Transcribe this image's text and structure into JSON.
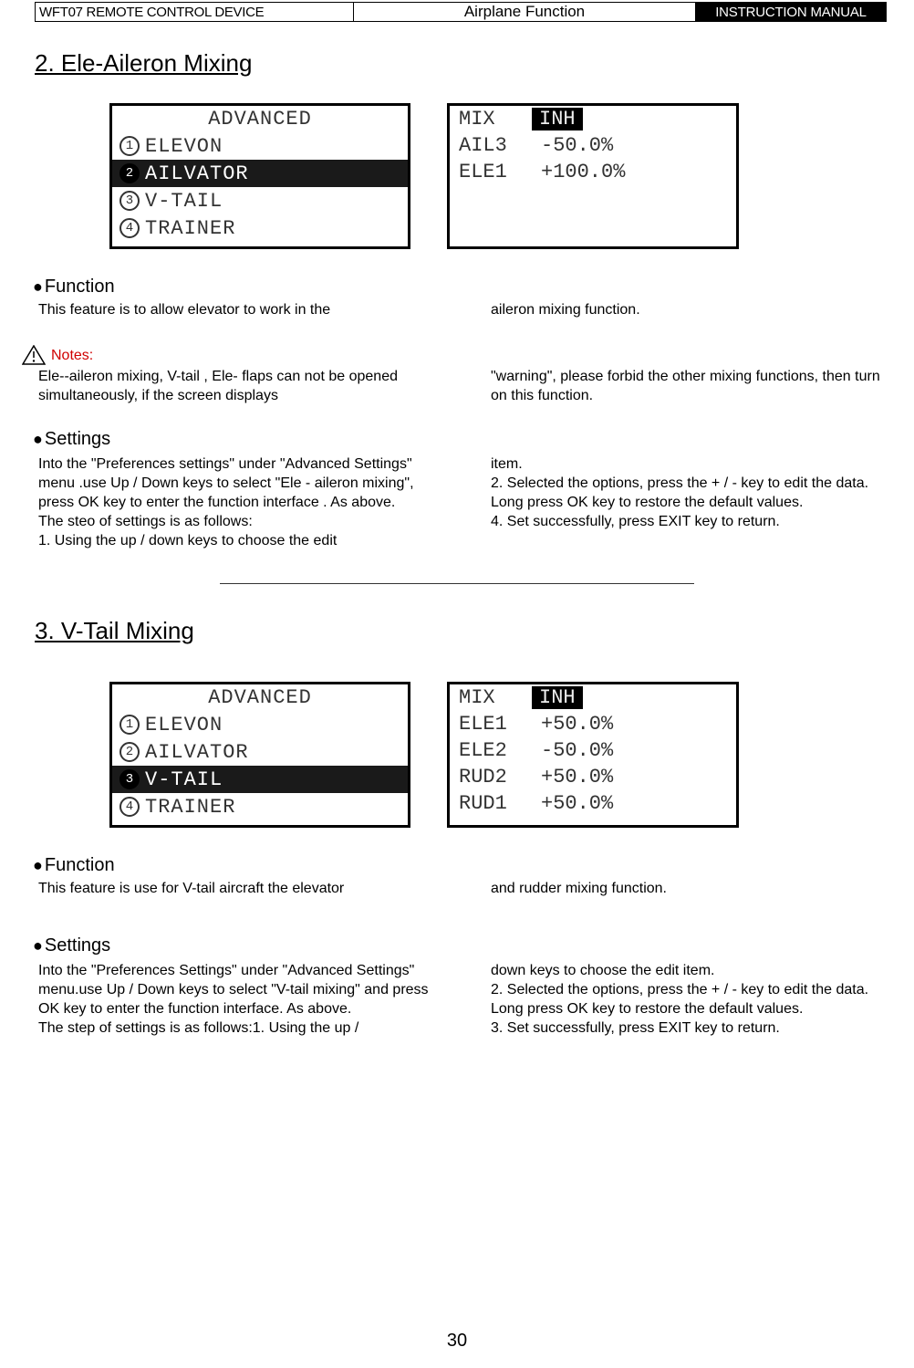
{
  "header": {
    "left": "WFT07 REMOTE CONTROL DEVICE",
    "center": "Airplane Function",
    "right": "INSTRUCTION MANUAL"
  },
  "section2": {
    "title": "2. Ele-Aileron Mixing",
    "menu": {
      "title": "ADVANCED",
      "items": [
        {
          "num": "1",
          "label": "ELEVON",
          "selected": false
        },
        {
          "num": "2",
          "label": "AILVATOR",
          "selected": true
        },
        {
          "num": "3",
          "label": "V-TAIL",
          "selected": false
        },
        {
          "num": "4",
          "label": "TRAINER",
          "selected": false
        }
      ]
    },
    "data": {
      "rows": [
        {
          "label": "MIX",
          "value": "INH",
          "inh": true
        },
        {
          "label": "AIL3",
          "value": "-50.0%",
          "inh": false
        },
        {
          "label": "ELE1",
          "value": "+100.0%",
          "inh": false
        }
      ]
    },
    "function_head": "Function",
    "function_left": "This feature is to allow elevator to work in the",
    "function_right": "aileron mixing function.",
    "notes_head": "Notes:",
    "notes_left": "Ele--aileron mixing, V-tail , Ele- flaps can not be opened simultaneously, if the screen displays",
    "notes_right": "\"warning\", please forbid the other mixing functions, then turn on this function.",
    "settings_head": "Settings",
    "settings_left": "Into the \"Preferences settings\" under \"Advanced Settings\" menu .use Up / Down keys to select \"Ele - aileron mixing\", press OK key to enter the function interface . As above.\nThe steo of settings is as follows:\n1. Using the up / down keys to choose the edit",
    "settings_right": "item.\n2. Selected the options, press the + / - key to edit the data. Long press OK key to restore the default values.\n4. Set successfully, press EXIT key to return."
  },
  "section3": {
    "title": "3. V-Tail Mixing",
    "menu": {
      "title": "ADVANCED",
      "items": [
        {
          "num": "1",
          "label": "ELEVON",
          "selected": false
        },
        {
          "num": "2",
          "label": "AILVATOR",
          "selected": false
        },
        {
          "num": "3",
          "label": "V-TAIL",
          "selected": true
        },
        {
          "num": "4",
          "label": "TRAINER",
          "selected": false
        }
      ]
    },
    "data": {
      "rows": [
        {
          "label": "MIX",
          "value": "INH",
          "inh": true
        },
        {
          "label": "ELE1",
          "value": "+50.0%",
          "inh": false
        },
        {
          "label": "ELE2",
          "value": "-50.0%",
          "inh": false
        },
        {
          "label": "RUD2",
          "value": "+50.0%",
          "inh": false
        },
        {
          "label": "RUD1",
          "value": "+50.0%",
          "inh": false
        }
      ]
    },
    "function_head": "Function",
    "function_left": "This feature is use for V-tail aircraft the elevator",
    "function_right": "and rudder mixing function.",
    "settings_head": "Settings",
    "settings_left": "Into the \"Preferences Settings\" under \"Advanced Settings\" menu.use Up / Down keys to select \"V-tail mixing\" and press OK key to enter the function interface. As above.\nThe step of settings is as follows:1. Using the up /",
    "settings_right": "down keys to choose the edit item.\n2. Selected the options, press the + / - key to edit the data. Long press OK key to restore the default values.\n3. Set successfully, press EXIT key to return."
  },
  "page_number": "30"
}
